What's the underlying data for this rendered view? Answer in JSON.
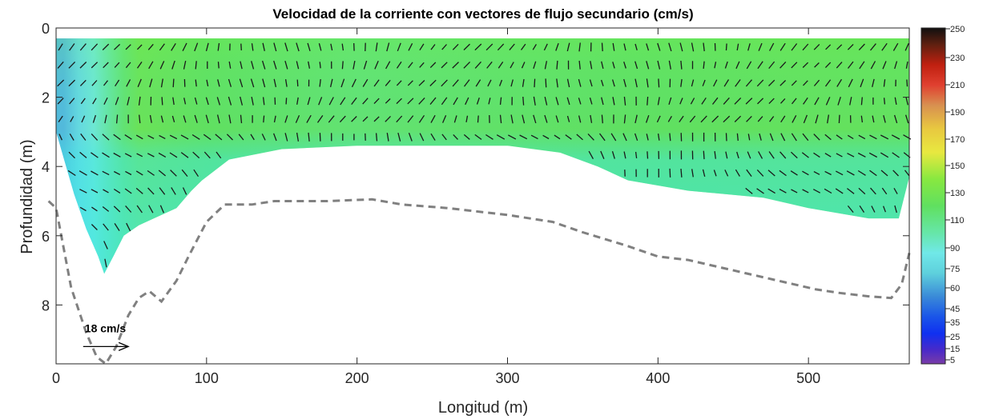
{
  "chart_data": {
    "type": "heatmap",
    "title": "Velocidad de la corriente con vectores de flujo secundario (cm/s)",
    "xlabel": "Longitud (m)",
    "ylabel": "Profundidad (m)",
    "xlim": [
      0,
      567
    ],
    "ylim": [
      9.7,
      0
    ],
    "x_ticks": [
      0,
      100,
      200,
      300,
      400,
      500
    ],
    "y_ticks": [
      0,
      2,
      4,
      6,
      8
    ],
    "x_tick_labels": [
      "0",
      "100",
      "200",
      "300",
      "400",
      "500"
    ],
    "y_tick_labels": [
      "0",
      "2",
      "4",
      "6",
      "8"
    ],
    "colorbar": {
      "range": [
        5,
        250
      ],
      "ticks": [
        5,
        15,
        25,
        35,
        45,
        60,
        75,
        90,
        110,
        130,
        150,
        170,
        190,
        210,
        230,
        250
      ],
      "tick_labels": [
        "5",
        "15",
        "25",
        "35",
        "45",
        "60",
        "75",
        "90",
        "110",
        "130",
        "150",
        "170",
        "190",
        "210",
        "230",
        "250"
      ]
    },
    "measurement_top_depth": 0.3,
    "velocity_bottom_profile": [
      [
        0,
        3.0
      ],
      [
        8,
        4.2
      ],
      [
        12,
        4.8
      ],
      [
        20,
        5.8
      ],
      [
        28,
        6.6
      ],
      [
        32,
        7.1
      ],
      [
        38,
        6.6
      ],
      [
        45,
        6.0
      ],
      [
        55,
        5.7
      ],
      [
        65,
        5.5
      ],
      [
        80,
        5.2
      ],
      [
        90,
        4.7
      ],
      [
        97,
        4.4
      ],
      [
        115,
        3.8
      ],
      [
        150,
        3.5
      ],
      [
        200,
        3.4
      ],
      [
        260,
        3.4
      ],
      [
        300,
        3.4
      ],
      [
        335,
        3.6
      ],
      [
        360,
        4.0
      ],
      [
        380,
        4.4
      ],
      [
        420,
        4.7
      ],
      [
        470,
        4.9
      ],
      [
        500,
        5.2
      ],
      [
        540,
        5.5
      ],
      [
        560,
        5.5
      ],
      [
        567,
        4.3
      ]
    ],
    "bed_profile": [
      [
        -5,
        5.0
      ],
      [
        0,
        5.2
      ],
      [
        10,
        7.5
      ],
      [
        20,
        8.8
      ],
      [
        27,
        9.5
      ],
      [
        33,
        9.7
      ],
      [
        40,
        9.2
      ],
      [
        48,
        8.3
      ],
      [
        55,
        7.8
      ],
      [
        62,
        7.6
      ],
      [
        70,
        7.9
      ],
      [
        80,
        7.3
      ],
      [
        88,
        6.6
      ],
      [
        100,
        5.6
      ],
      [
        112,
        5.1
      ],
      [
        130,
        5.1
      ],
      [
        145,
        5.0
      ],
      [
        180,
        5.0
      ],
      [
        210,
        4.95
      ],
      [
        230,
        5.1
      ],
      [
        260,
        5.2
      ],
      [
        300,
        5.4
      ],
      [
        330,
        5.6
      ],
      [
        350,
        5.9
      ],
      [
        380,
        6.3
      ],
      [
        400,
        6.6
      ],
      [
        420,
        6.7
      ],
      [
        450,
        7.0
      ],
      [
        480,
        7.3
      ],
      [
        505,
        7.55
      ],
      [
        520,
        7.65
      ],
      [
        540,
        7.75
      ],
      [
        555,
        7.8
      ],
      [
        562,
        7.4
      ],
      [
        567,
        6.5
      ]
    ],
    "velocity_field": [
      {
        "x": 5,
        "v": 55
      },
      {
        "x": 15,
        "v": 65
      },
      {
        "x": 25,
        "v": 80
      },
      {
        "x": 35,
        "v": 92
      },
      {
        "x": 45,
        "v": 105
      },
      {
        "x": 55,
        "v": 115
      },
      {
        "x": 100,
        "v": 110
      },
      {
        "x": 200,
        "v": 105
      },
      {
        "x": 300,
        "v": 108
      },
      {
        "x": 400,
        "v": 110
      },
      {
        "x": 500,
        "v": 112
      },
      {
        "x": 567,
        "v": 112
      }
    ],
    "reference_vector": {
      "label": "18 cm/s",
      "x": 18,
      "depth": 9.2,
      "length_m": 30
    }
  }
}
